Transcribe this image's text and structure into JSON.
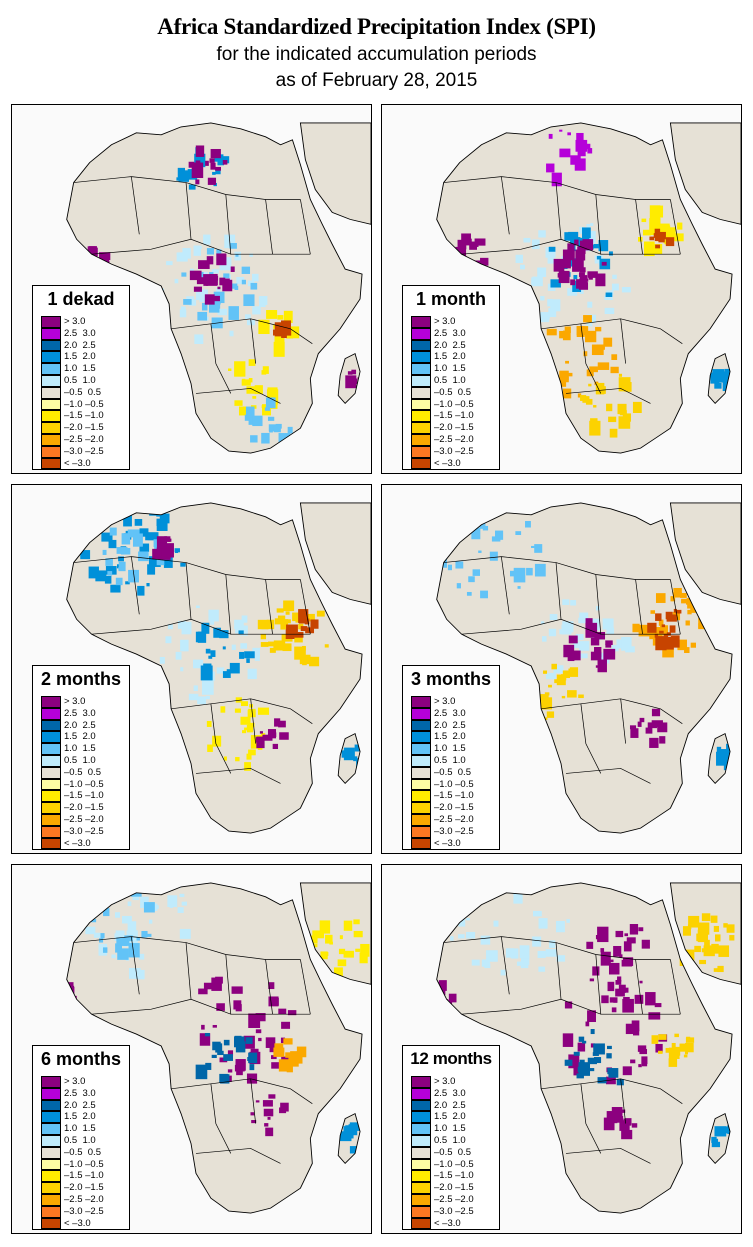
{
  "title": "Africa Standardized Precipitation Index (SPI)",
  "subtitle_line1": "for the indicated accumulation periods",
  "subtitle_line2": "as of February 28, 2015",
  "legend_classes": [
    {
      "label": "> 3.0",
      "color": "#8c007f"
    },
    {
      "label": "2.5  3.0",
      "color": "#b500d9"
    },
    {
      "label": "2.0  2.5",
      "color": "#0066a8"
    },
    {
      "label": "1.5  2.0",
      "color": "#0090d9"
    },
    {
      "label": "1.0  1.5",
      "color": "#62c3f7"
    },
    {
      "label": "0.5  1.0",
      "color": "#c0ebfc"
    },
    {
      "label": "–0.5  0.5",
      "color": "#e6e1d6"
    },
    {
      "label": "–1.0 –0.5",
      "color": "#fdfca3"
    },
    {
      "label": "–1.5 –1.0",
      "color": "#ffec00"
    },
    {
      "label": "–2.0 –1.5",
      "color": "#fcd200"
    },
    {
      "label": "–2.5 –2.0",
      "color": "#fba800"
    },
    {
      "label": "–3.0 –2.5",
      "color": "#fd7822"
    },
    {
      "label": "< –3.0",
      "color": "#c74400"
    }
  ],
  "panels": [
    {
      "period": "1 dekad",
      "dominant": "mixed; wet Central Africa, dry patches Kenya/Mozambique"
    },
    {
      "period": "1 month",
      "dominant": "wet Central/West Africa; dry Southern Africa"
    },
    {
      "period": "2 months",
      "dominant": "wet Sahara/Central; dry East Africa and Southern Africa"
    },
    {
      "period": "3 months",
      "dominant": "wet West Sahara/Central; dry Ethiopia/Somalia"
    },
    {
      "period": "6 months",
      "dominant": "wet Central Africa and Guinea coast; moderate dry East"
    },
    {
      "period": "12 months",
      "dominant": "wet Central Africa broadly; dry Arabia"
    }
  ],
  "colors": {
    "ocean": "#fafafa",
    "land_neutral": "#e6e1d6",
    "border": "#000000"
  }
}
